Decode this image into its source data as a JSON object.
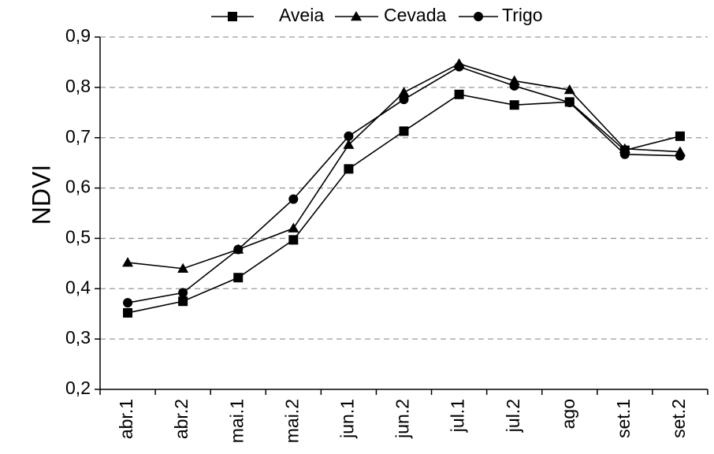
{
  "chart_data": {
    "type": "line",
    "title": "",
    "xlabel": "",
    "ylabel": "NDVI",
    "categories": [
      "abr.1",
      "abr.2",
      "mai.1",
      "mai.2",
      "jun.1",
      "jun.2",
      "jul.1",
      "jul.2",
      "ago",
      "set.1",
      "set.2"
    ],
    "ylim": [
      0.2,
      0.9
    ],
    "yticks": [
      0.2,
      0.3,
      0.4,
      0.5,
      0.6,
      0.7,
      0.8,
      0.9
    ],
    "ytick_labels": [
      "0,2",
      "0,3",
      "0,4",
      "0,5",
      "0,6",
      "0,7",
      "0,8",
      "0,9"
    ],
    "grid": "horizontal dashed",
    "legend_position": "top",
    "series": [
      {
        "name": "Aveia",
        "marker": "square",
        "values": [
          0.352,
          0.375,
          0.422,
          0.497,
          0.638,
          0.713,
          0.786,
          0.765,
          0.771,
          0.675,
          0.703
        ]
      },
      {
        "name": "Cevada",
        "marker": "triangle",
        "values": [
          0.452,
          0.44,
          0.478,
          0.52,
          0.686,
          0.79,
          0.847,
          0.813,
          0.795,
          0.678,
          0.672
        ]
      },
      {
        "name": "Trigo",
        "marker": "circle",
        "values": [
          0.372,
          0.392,
          0.478,
          0.578,
          0.703,
          0.776,
          0.841,
          0.803,
          0.77,
          0.667,
          0.664
        ]
      }
    ],
    "colors": {
      "line": "#000000",
      "grid": "#9a9a9a"
    }
  }
}
